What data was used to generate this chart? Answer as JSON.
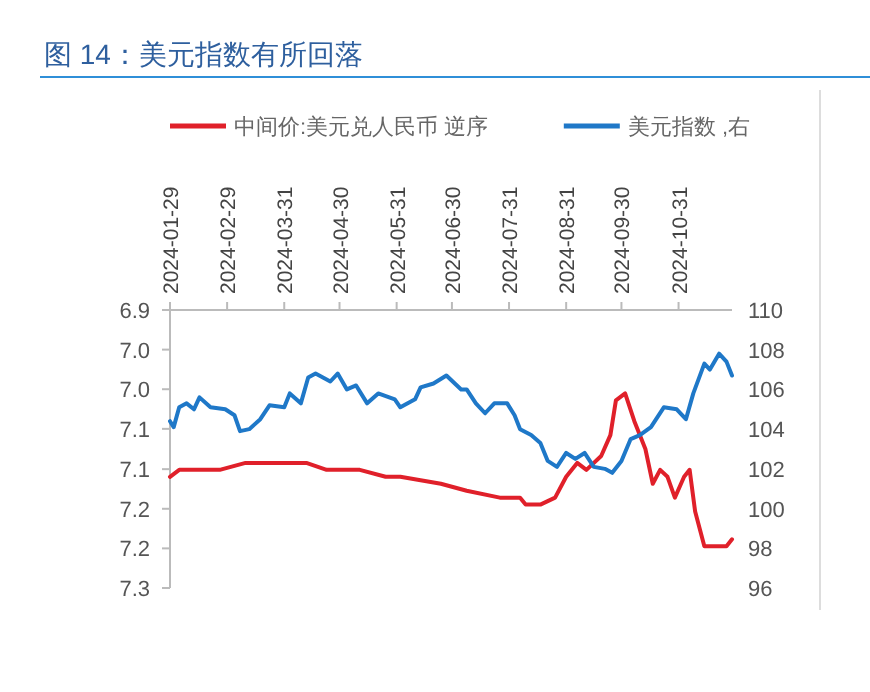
{
  "chart_data": {
    "type": "line",
    "title": "图 14：美元指数有所回落",
    "legend": "top",
    "grid": false,
    "xlim": [
      "2024-01-29",
      "2024-11-29"
    ],
    "xticks": [
      "2024-01-29",
      "2024-02-29",
      "2024-03-31",
      "2024-04-30",
      "2024-05-31",
      "2024-06-30",
      "2024-07-31",
      "2024-08-31",
      "2024-09-30",
      "2024-10-31"
    ],
    "ylim": [
      7.3,
      6.9
    ],
    "yticks": [
      {
        "value": 6.9,
        "label": "6.9"
      },
      {
        "value": 6.957,
        "label": "7.0"
      },
      {
        "value": 7.014,
        "label": "7.0"
      },
      {
        "value": 7.071,
        "label": "7.1"
      },
      {
        "value": 7.129,
        "label": "7.1"
      },
      {
        "value": 7.186,
        "label": "7.2"
      },
      {
        "value": 7.243,
        "label": "7.2"
      },
      {
        "value": 7.3,
        "label": "7.3"
      }
    ],
    "y2lim": [
      96,
      110
    ],
    "y2ticks": [
      96,
      98,
      100,
      102,
      104,
      106,
      108,
      110
    ],
    "series": [
      {
        "name": "中间价:美元兑人民币 逆序",
        "color": "#e0202a",
        "x": [
          "2024-01-29",
          "2024-02-03",
          "2024-02-11",
          "2024-02-25",
          "2024-03-10",
          "2024-03-18",
          "2024-03-26",
          "2024-04-01",
          "2024-04-12",
          "2024-04-23",
          "2024-05-04",
          "2024-05-11",
          "2024-05-25",
          "2024-06-02",
          "2024-06-24",
          "2024-07-08",
          "2024-07-26",
          "2024-08-06",
          "2024-08-09",
          "2024-08-17",
          "2024-08-25",
          "2024-08-31",
          "2024-09-06",
          "2024-09-11",
          "2024-09-19",
          "2024-09-24",
          "2024-09-27",
          "2024-10-02",
          "2024-10-07",
          "2024-10-13",
          "2024-10-17",
          "2024-10-21",
          "2024-10-25",
          "2024-10-29",
          "2024-11-03",
          "2024-11-06",
          "2024-11-09",
          "2024-11-14",
          "2024-11-20",
          "2024-11-26",
          "2024-11-29"
        ],
        "values": [
          7.14,
          7.13,
          7.13,
          7.13,
          7.12,
          7.12,
          7.12,
          7.12,
          7.12,
          7.13,
          7.13,
          7.13,
          7.14,
          7.14,
          7.15,
          7.16,
          7.17,
          7.17,
          7.18,
          7.18,
          7.17,
          7.14,
          7.12,
          7.13,
          7.11,
          7.08,
          7.03,
          7.02,
          7.06,
          7.1,
          7.15,
          7.13,
          7.14,
          7.17,
          7.14,
          7.13,
          7.19,
          7.24,
          7.24,
          7.24,
          7.23
        ]
      },
      {
        "name": "美元指数 ,右",
        "color": "#1f78c8",
        "axis": "y2",
        "x": [
          "2024-01-29",
          "2024-01-31",
          "2024-02-03",
          "2024-02-07",
          "2024-02-11",
          "2024-02-14",
          "2024-02-20",
          "2024-02-28",
          "2024-03-04",
          "2024-03-07",
          "2024-03-12",
          "2024-03-18",
          "2024-03-23",
          "2024-03-31",
          "2024-04-03",
          "2024-04-09",
          "2024-04-13",
          "2024-04-17",
          "2024-04-25",
          "2024-04-29",
          "2024-05-04",
          "2024-05-09",
          "2024-05-15",
          "2024-05-21",
          "2024-05-30",
          "2024-06-02",
          "2024-06-10",
          "2024-06-13",
          "2024-06-20",
          "2024-06-27",
          "2024-07-05",
          "2024-07-08",
          "2024-07-13",
          "2024-07-18",
          "2024-07-23",
          "2024-07-30",
          "2024-08-03",
          "2024-08-06",
          "2024-08-12",
          "2024-08-17",
          "2024-08-21",
          "2024-08-26",
          "2024-08-31",
          "2024-09-05",
          "2024-09-10",
          "2024-09-15",
          "2024-09-21",
          "2024-09-25",
          "2024-09-30",
          "2024-10-05",
          "2024-10-10",
          "2024-10-16",
          "2024-10-23",
          "2024-10-30",
          "2024-11-04",
          "2024-11-08",
          "2024-11-14",
          "2024-11-17",
          "2024-11-22",
          "2024-11-26",
          "2024-11-29"
        ],
        "values": [
          104.4,
          104.1,
          105.1,
          105.3,
          105.0,
          105.6,
          105.1,
          105.0,
          104.7,
          103.9,
          104.0,
          104.5,
          105.2,
          105.1,
          105.8,
          105.3,
          106.6,
          106.8,
          106.4,
          106.8,
          106.0,
          106.2,
          105.3,
          105.8,
          105.5,
          105.1,
          105.5,
          106.1,
          106.3,
          106.7,
          106.0,
          106.0,
          105.3,
          104.8,
          105.3,
          105.3,
          104.7,
          104.0,
          103.7,
          103.3,
          102.4,
          102.1,
          102.8,
          102.5,
          102.8,
          102.1,
          102.0,
          101.8,
          102.4,
          103.5,
          103.7,
          104.1,
          105.1,
          105.0,
          104.5,
          105.8,
          107.3,
          107.0,
          107.8,
          107.4,
          106.7
        ]
      }
    ]
  }
}
